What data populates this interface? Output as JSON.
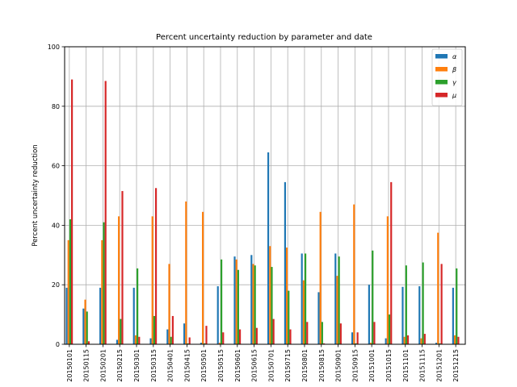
{
  "chart_data": {
    "type": "bar",
    "title": "Percent uncertainty reduction by parameter and date",
    "xlabel": "",
    "ylabel": "Percent uncertainty reduction",
    "ylim": [
      0,
      100
    ],
    "yticks": [
      0,
      20,
      40,
      60,
      80,
      100
    ],
    "grid": true,
    "legend_position": "top-right",
    "categories": [
      "20150101",
      "20150115",
      "20150201",
      "20150215",
      "20150301",
      "20150315",
      "20150401",
      "20150415",
      "20150501",
      "20150515",
      "20150601",
      "20150615",
      "20150701",
      "20150715",
      "20150801",
      "20150815",
      "20150901",
      "20150915",
      "20151001",
      "20151015",
      "20151101",
      "20151115",
      "20151201",
      "20151215"
    ],
    "series": [
      {
        "name": "α",
        "color": "#1f77b4",
        "values": [
          19,
          12,
          19,
          1.5,
          19,
          2,
          5,
          7,
          0.5,
          19.5,
          29.5,
          30,
          64.5,
          54.5,
          30.5,
          17.5,
          30.5,
          4,
          20,
          2,
          19.3,
          19.5,
          0.5,
          19
        ]
      },
      {
        "name": "β",
        "color": "#ff7f0e",
        "values": [
          35,
          15,
          35,
          43,
          3,
          43,
          27,
          48,
          44.5,
          0.5,
          28.5,
          27,
          33,
          32.5,
          21.5,
          44.5,
          23,
          47,
          0.5,
          43,
          2.5,
          2,
          37.5,
          3
        ]
      },
      {
        "name": "γ",
        "color": "#2ca02c",
        "values": [
          42,
          11,
          41,
          8.5,
          25.5,
          9.5,
          2.5,
          0.3,
          0.3,
          28.5,
          25,
          26.5,
          26,
          18,
          30.5,
          7.5,
          29.5,
          0.3,
          31.5,
          10,
          26.5,
          27.5,
          0.3,
          25.5
        ]
      },
      {
        "name": "μ",
        "color": "#d62728",
        "values": [
          89,
          1,
          88.5,
          51.5,
          2.5,
          52.5,
          9.5,
          2.3,
          6.2,
          4,
          5,
          5.5,
          8.5,
          5,
          7.5,
          0.3,
          7,
          4,
          7.5,
          54.5,
          3,
          3.5,
          27,
          2.5
        ]
      }
    ]
  }
}
